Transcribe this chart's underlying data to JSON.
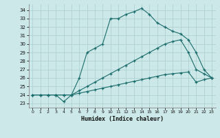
{
  "xlabel": "Humidex (Indice chaleur)",
  "xlim": [
    -0.5,
    23.5
  ],
  "ylim": [
    22.5,
    34.7
  ],
  "yticks": [
    23,
    24,
    25,
    26,
    27,
    28,
    29,
    30,
    31,
    32,
    33,
    34
  ],
  "xticks": [
    0,
    1,
    2,
    3,
    4,
    5,
    6,
    7,
    8,
    9,
    10,
    11,
    12,
    13,
    14,
    15,
    16,
    17,
    18,
    19,
    20,
    21,
    22,
    23
  ],
  "background_color": "#cce8e8",
  "grid_color": "#b0d8d8",
  "line_color": "#1a6b6b",
  "series": [
    {
      "x": [
        0,
        1,
        2,
        3,
        4,
        5,
        6,
        7,
        8,
        9,
        10,
        11,
        12,
        13,
        14,
        15,
        16,
        17,
        18,
        19,
        20,
        21,
        22,
        23
      ],
      "y": [
        24,
        24,
        24,
        24,
        24,
        24,
        24.2,
        24.4,
        24.6,
        24.8,
        25.0,
        25.2,
        25.4,
        25.6,
        25.8,
        26.0,
        26.2,
        26.4,
        26.5,
        26.6,
        26.7,
        25.5,
        25.8,
        26.0
      ]
    },
    {
      "x": [
        0,
        1,
        2,
        3,
        4,
        5,
        6,
        7,
        8,
        9,
        10,
        11,
        12,
        13,
        14,
        15,
        16,
        17,
        18,
        19,
        20,
        21,
        22,
        23
      ],
      "y": [
        24,
        24,
        24,
        24,
        24,
        24,
        24.5,
        25.0,
        25.5,
        26.0,
        26.5,
        27.0,
        27.5,
        28.0,
        28.5,
        29.0,
        29.5,
        30.0,
        30.3,
        30.5,
        29.0,
        27.0,
        26.5,
        26.0
      ]
    },
    {
      "x": [
        0,
        1,
        2,
        3,
        4,
        5,
        6,
        7,
        8,
        9,
        10,
        11,
        12,
        13,
        14,
        15,
        16,
        17,
        18,
        19,
        20,
        21,
        22,
        23
      ],
      "y": [
        24,
        24,
        24,
        24,
        23.2,
        24.0,
        26.0,
        29.0,
        29.5,
        30.0,
        33.0,
        33.0,
        33.5,
        33.8,
        34.2,
        33.5,
        32.5,
        32.0,
        31.5,
        31.2,
        30.5,
        29.0,
        27.0,
        26.0
      ]
    }
  ]
}
